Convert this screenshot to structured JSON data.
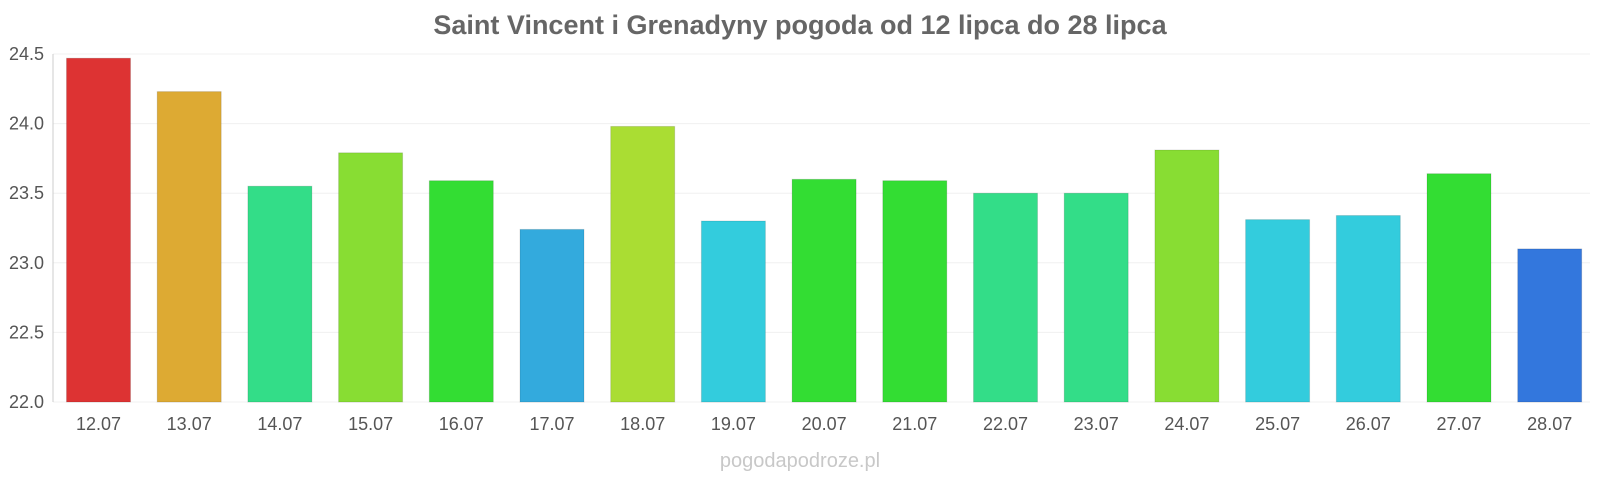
{
  "chart_data": {
    "type": "bar",
    "title": "Saint Vincent i Grenadyny pogoda od 12 lipca do 28 lipca",
    "xlabel": "",
    "ylabel": "",
    "ylim": [
      22.0,
      24.5
    ],
    "yticks": [
      "22.0",
      "22.5",
      "23.0",
      "23.5",
      "24.0",
      "24.5"
    ],
    "grid": true,
    "legend": "none",
    "categories": [
      "12.07",
      "13.07",
      "14.07",
      "15.07",
      "16.07",
      "17.07",
      "18.07",
      "19.07",
      "20.07",
      "21.07",
      "22.07",
      "23.07",
      "24.07",
      "25.07",
      "26.07",
      "27.07",
      "28.07"
    ],
    "values": [
      24.47,
      24.23,
      23.55,
      23.79,
      23.59,
      23.24,
      23.98,
      23.3,
      23.6,
      23.59,
      23.5,
      23.5,
      23.81,
      23.31,
      23.34,
      23.64,
      23.1
    ],
    "colors": [
      "#dd3333",
      "#ddaa33",
      "#33dd88",
      "#88dd33",
      "#33dd33",
      "#33aadd",
      "#aadd33",
      "#33ccdd",
      "#33dd33",
      "#33dd33",
      "#33dd88",
      "#33dd88",
      "#88dd33",
      "#33ccdd",
      "#33ccdd",
      "#33dd33",
      "#3377dd"
    ]
  },
  "watermark": "pogodapodroze.pl"
}
